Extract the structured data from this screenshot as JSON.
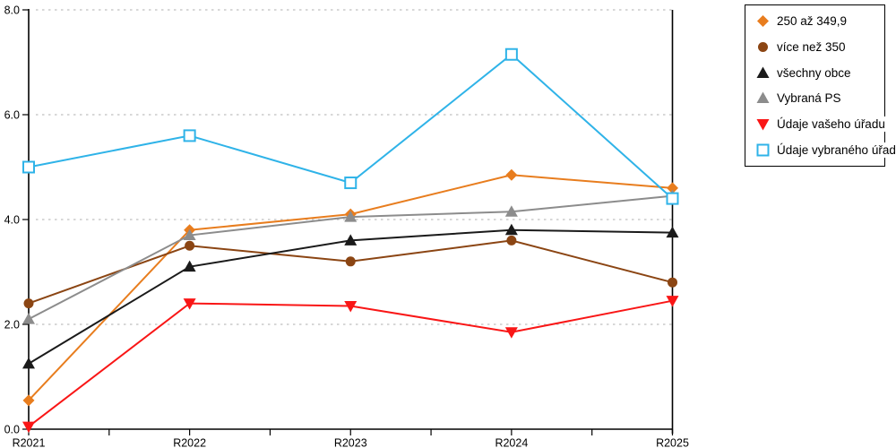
{
  "chart_data": {
    "type": "line",
    "title": "",
    "xlabel": "",
    "ylabel": "",
    "categories": [
      "R2021",
      "R2022",
      "R2023",
      "R2024",
      "R2025"
    ],
    "ylim": [
      0,
      8
    ],
    "yticks": [
      0,
      2,
      4,
      6,
      8
    ],
    "ytick_labels": [
      "0.0",
      "2.0",
      "4.0",
      "6.0",
      "8.0"
    ],
    "grid": "horizontal dashed gridlines at labeled y ticks",
    "legend_position": "top-right boxed",
    "axis_color": "#000000",
    "gridline_color": "#BFBFBF",
    "series": [
      {
        "name": "250 až 349,9",
        "color": "#E87D1E",
        "marker": "diamond",
        "values": [
          0.55,
          3.8,
          4.1,
          4.85,
          4.6
        ]
      },
      {
        "name": "více než 350",
        "color": "#8B4513",
        "marker": "circle",
        "values": [
          2.4,
          3.5,
          3.2,
          3.6,
          2.8
        ]
      },
      {
        "name": "všechny obce",
        "color": "#1A1A1A",
        "marker": "triangle-up",
        "values": [
          1.25,
          3.1,
          3.6,
          3.8,
          3.75
        ]
      },
      {
        "name": "Vybraná PS",
        "color": "#8C8C8C",
        "marker": "triangle-up",
        "values": [
          2.1,
          3.7,
          4.05,
          4.15,
          4.45
        ]
      },
      {
        "name": "Údaje vašeho úřadu",
        "color": "#F91616",
        "marker": "triangle-down",
        "values": [
          0.05,
          2.4,
          2.35,
          1.85,
          2.45
        ]
      },
      {
        "name": "Údaje vybraného úřadu",
        "color": "#2FB3E8",
        "marker": "square-open",
        "values": [
          5.0,
          5.6,
          4.7,
          7.15,
          4.4
        ]
      }
    ]
  }
}
